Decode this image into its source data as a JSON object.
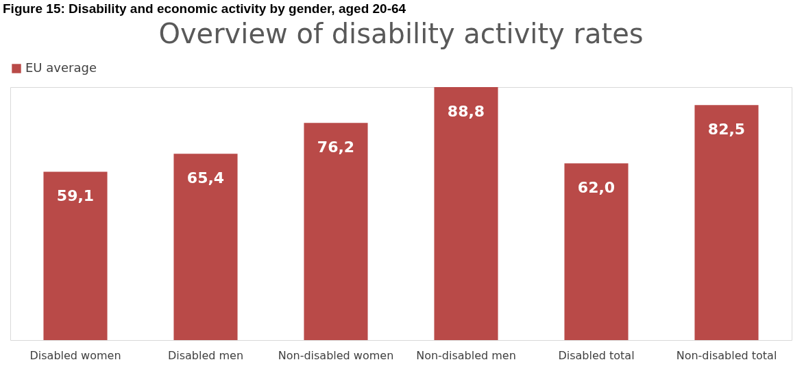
{
  "chart_data": {
    "type": "bar",
    "title": "Overview of disability activity rates",
    "annotations": [
      "Figure 15: Disability and economic activity by gender, aged 20-64"
    ],
    "categories": [
      "Disabled women",
      "Disabled men",
      "Non-disabled women",
      "Non-disabled men",
      "Disabled total",
      "Non-disabled total"
    ],
    "series": [
      {
        "name": "EU average",
        "color": "#b94a48",
        "values": [
          59.1,
          65.4,
          76.2,
          88.8,
          62.0,
          82.5
        ],
        "value_labels": [
          "59,1",
          "65,4",
          "76,2",
          "88,8",
          "62,0",
          "82,5"
        ]
      }
    ],
    "legend": "top",
    "grid": false
  }
}
